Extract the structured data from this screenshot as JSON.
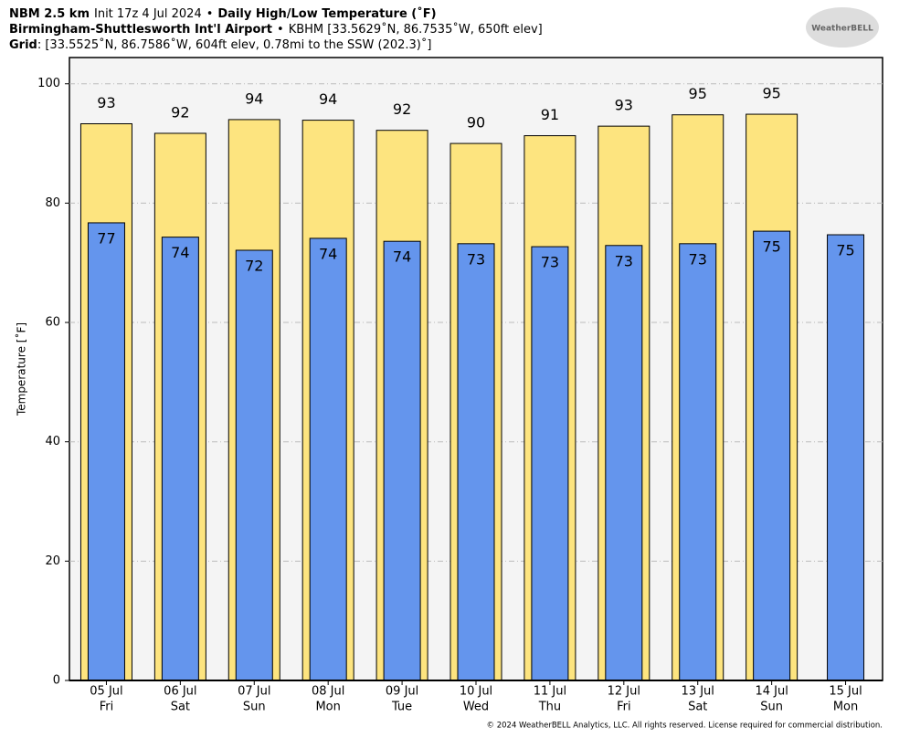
{
  "chart_data": {
    "type": "bar",
    "header": [
      [
        {
          "text": "NBM 2.5 km",
          "bold": true
        },
        {
          "text": "Init 17z 4 Jul 2024"
        },
        {
          "text": "•"
        },
        {
          "text": "Daily High/Low Temperature (˚F)",
          "bold": true
        }
      ],
      [
        {
          "text": "Birmingham-Shuttlesworth Int'l Airport",
          "bold": true
        },
        {
          "text": "•"
        },
        {
          "text": "KBHM [33.5629˚N, 86.7535˚W, 650ft elev]"
        }
      ],
      [
        {
          "text": "Grid",
          "bold": true
        },
        {
          "text": ": [33.5525˚N, 86.7586˚W, 604ft elev, 0.78mi to the SSW (202.3)˚]"
        }
      ]
    ],
    "logo": "WeatherBELL",
    "footer": "© 2024 WeatherBELL Analytics, LLC. All rights reserved. License required for commercial distribution.",
    "ylabel": "Temperature [˚F]",
    "categories": [
      "05 Jul",
      "06 Jul",
      "07 Jul",
      "08 Jul",
      "09 Jul",
      "10 Jul",
      "11 Jul",
      "12 Jul",
      "13 Jul",
      "14 Jul",
      "15 Jul"
    ],
    "category_days": [
      "Fri",
      "Sat",
      "Sun",
      "Mon",
      "Tue",
      "Wed",
      "Thu",
      "Fri",
      "Sat",
      "Sun",
      "Mon"
    ],
    "series": [
      {
        "name": "High",
        "color": "#fde47f",
        "values": [
          93.3,
          91.7,
          94.0,
          93.9,
          92.2,
          90.0,
          91.3,
          92.9,
          94.8,
          94.9,
          null
        ],
        "value_labels": [
          "93",
          "92",
          "94",
          "94",
          "92",
          "90",
          "91",
          "93",
          "95",
          "95",
          null
        ]
      },
      {
        "name": "Low",
        "color": "#6495ed",
        "values": [
          76.7,
          74.3,
          72.1,
          74.1,
          73.6,
          73.2,
          72.7,
          72.9,
          73.2,
          75.3,
          74.7
        ],
        "value_labels": [
          "77",
          "74",
          "72",
          "74",
          "74",
          "73",
          "73",
          "73",
          "73",
          "75",
          "75"
        ]
      }
    ],
    "ylim": [
      0,
      104.4
    ],
    "yticks": [
      0,
      20,
      40,
      60,
      80,
      100
    ],
    "grid": true
  }
}
